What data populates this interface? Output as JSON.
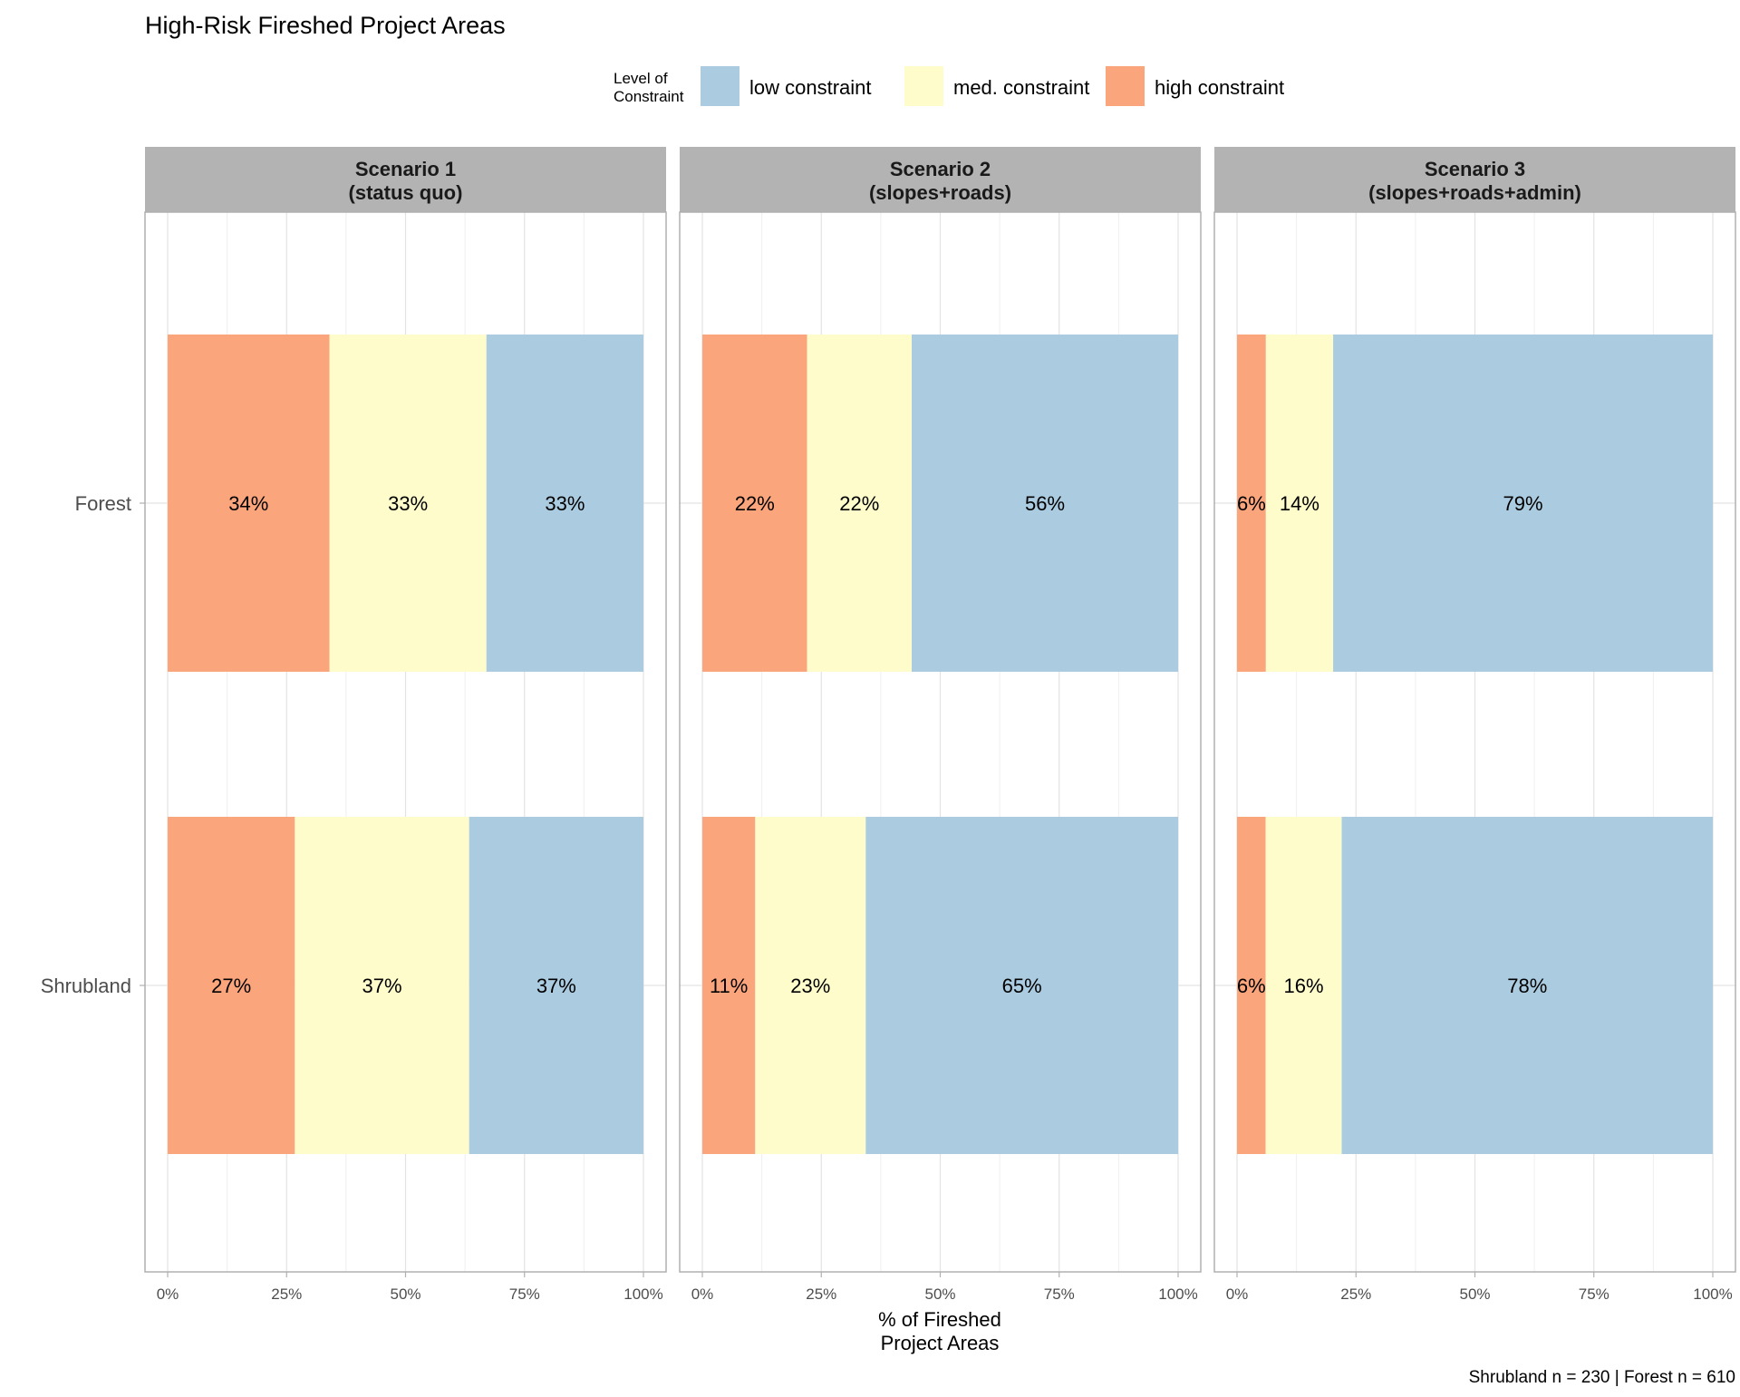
{
  "chart_data": {
    "type": "bar",
    "orientation": "horizontal",
    "stacked": true,
    "title": "High-Risk Fireshed Project Areas",
    "caption": "Shrubland n = 230 | Forest n = 610",
    "xlabel": "% of Fireshed\nProject Areas",
    "ylabel": "",
    "xlim": [
      0,
      100
    ],
    "x_ticks": [
      "0%",
      "25%",
      "50%",
      "75%",
      "100%"
    ],
    "categories": [
      "Forest",
      "Shrubland"
    ],
    "grid": true,
    "legend": {
      "title": "Level of\nConstraint",
      "placement": "top-center",
      "entries": [
        {
          "label": "low constraint",
          "color": "#abcbe0"
        },
        {
          "label": "med. constraint",
          "color": "#fefccb"
        },
        {
          "label": "high constraint",
          "color": "#fba57d"
        }
      ]
    },
    "stack_order": [
      "high constraint",
      "med. constraint",
      "low constraint"
    ],
    "facets": [
      {
        "title": "Scenario 1\n(status quo)",
        "series": [
          {
            "name": "high constraint",
            "values": [
              34,
              27
            ],
            "labels": [
              "34%",
              "27%"
            ]
          },
          {
            "name": "med. constraint",
            "values": [
              33,
              37
            ],
            "labels": [
              "33%",
              "37%"
            ]
          },
          {
            "name": "low constraint",
            "values": [
              33,
              37
            ],
            "labels": [
              "33%",
              "37%"
            ]
          }
        ]
      },
      {
        "title": "Scenario 2\n(slopes+roads)",
        "series": [
          {
            "name": "high constraint",
            "values": [
              22,
              11
            ],
            "labels": [
              "22%",
              "11%"
            ]
          },
          {
            "name": "med. constraint",
            "values": [
              22,
              23
            ],
            "labels": [
              "22%",
              "23%"
            ]
          },
          {
            "name": "low constraint",
            "values": [
              56,
              65
            ],
            "labels": [
              "56%",
              "65%"
            ]
          }
        ]
      },
      {
        "title": "Scenario 3\n(slopes+roads+admin)",
        "series": [
          {
            "name": "high constraint",
            "values": [
              6,
              6
            ],
            "labels": [
              "6%",
              "6%"
            ]
          },
          {
            "name": "med. constraint",
            "values": [
              14,
              16
            ],
            "labels": [
              "14%",
              "16%"
            ]
          },
          {
            "name": "low constraint",
            "values": [
              79,
              78
            ],
            "labels": [
              "79%",
              "78%"
            ]
          }
        ]
      }
    ],
    "colors": {
      "strip": "#b3b3b3",
      "grid": "#e3e3e3",
      "panel_border": "#b0b0b0",
      "text": "#000000",
      "axis_text": "#4d4d4d"
    }
  }
}
